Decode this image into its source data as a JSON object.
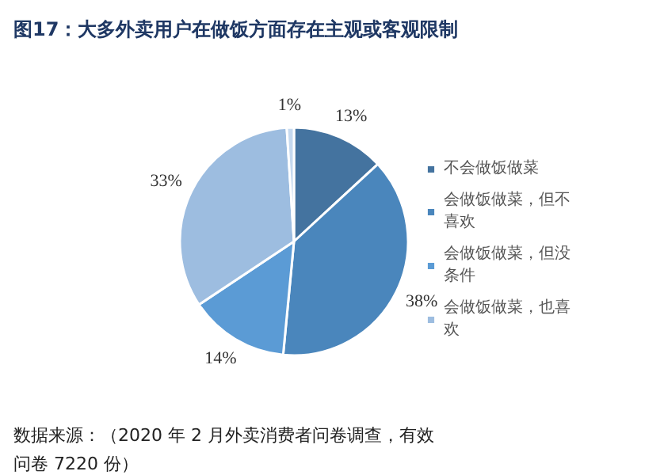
{
  "chart_data": {
    "type": "pie",
    "title": "图17：大多外卖用户在做饭方面存在主观或客观限制",
    "categories": [
      "不会做饭做菜",
      "会做饭做菜，但不喜欢",
      "会做饭做菜，但没条件",
      "会做饭做菜，也喜欢",
      null
    ],
    "values": [
      13,
      38,
      14,
      33,
      1
    ],
    "value_labels": [
      "13%",
      "38%",
      "14%",
      "33%",
      "1%"
    ],
    "colors": [
      "#44739f",
      "#4a86bc",
      "#5b9bd5",
      "#9dbde0",
      "#c5d9ef"
    ],
    "legend": "right",
    "annotations": [
      "数据来源：（2020 年 2 月外卖消费者问卷调查，有效问卷 7220 份）"
    ]
  }
}
